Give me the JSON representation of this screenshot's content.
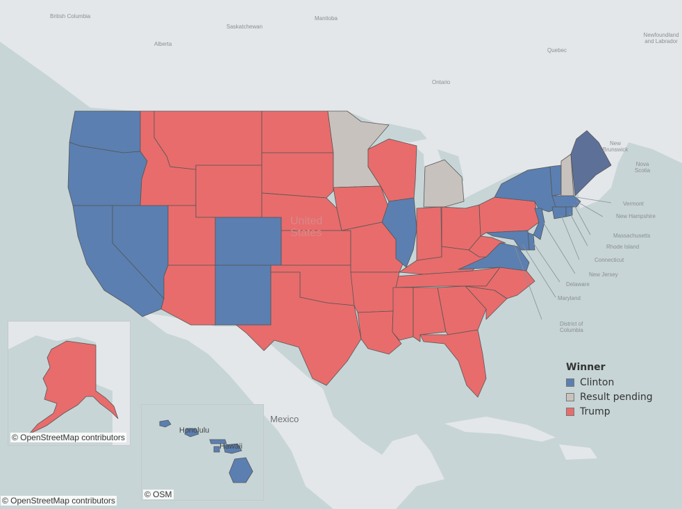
{
  "map": {
    "country_labels": {
      "us": "United States",
      "mexico": "Mexico"
    },
    "province_labels": {
      "bc": "British Columbia",
      "alberta": "Alberta",
      "saskatchewan": "Saskatchewan",
      "manitoba": "Manitoba",
      "ontario": "Ontario",
      "quebec": "Quebec",
      "newfoundland": "Newfoundland and Labrador",
      "new_brunswick": "New Brunswick",
      "nova_scotia": "Nova Scotia"
    },
    "callout_labels": {
      "vermont": "Vermont",
      "new_hampshire": "New Hampshire",
      "massachusetts": "Massachusetts",
      "rhode_island": "Rhode Island",
      "connecticut": "Connecticut",
      "new_jersey": "New Jersey",
      "delaware": "Delaware",
      "maryland": "Maryland",
      "dc": "District of Columbia"
    },
    "inset_labels": {
      "honolulu": "Honolulu",
      "hawaii": "Hawaii"
    }
  },
  "legend": {
    "title": "Winner",
    "items": [
      {
        "label": "Clinton",
        "color": "#5b7fb0"
      },
      {
        "label": "Result pending",
        "color": "#c8c2be"
      },
      {
        "label": "Trump",
        "color": "#e86c6c"
      }
    ]
  },
  "attribution": {
    "main": "© OpenStreetMap contributors",
    "alaska": "© OpenStreetMap contributors",
    "hawaii": "© OSM"
  },
  "colors": {
    "clinton": "#5b7fb0",
    "pending": "#c8c2be",
    "trump": "#e86c6c",
    "water": "#c7d5d7",
    "land": "#e3e6e8"
  }
}
